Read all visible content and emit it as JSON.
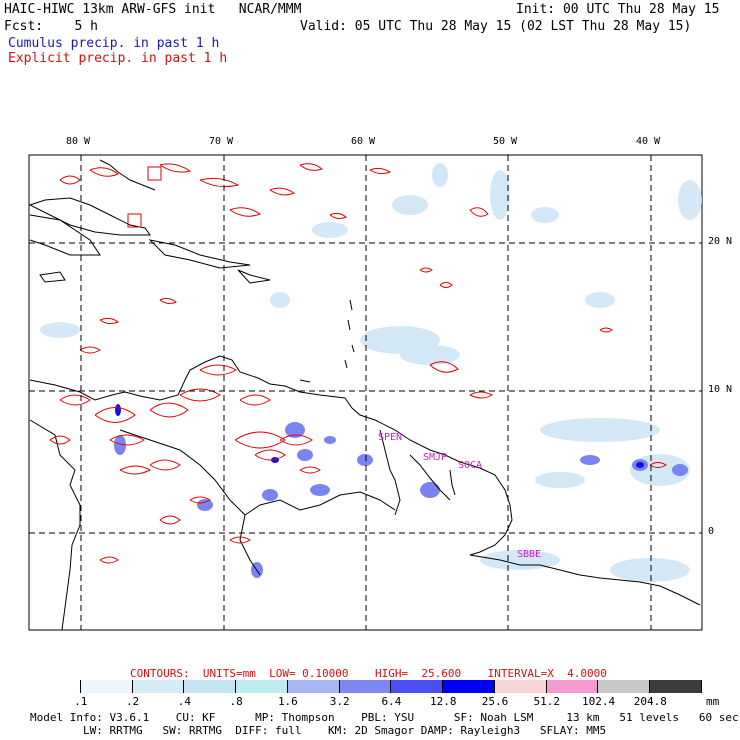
{
  "header": {
    "line1_left": "HAIC-HIWC 13km ARW-GFS init   NCAR/MMM",
    "line1_right": "Init: 00 UTC Thu 28 May 15",
    "line2_left": "Fcst:    5 h",
    "line2_right": "Valid: 05 UTC Thu 28 May 15 (02 LST Thu 28 May 15)",
    "legend_cumulus": "Cumulus precip. in past 1 h",
    "legend_explicit": "Explicit precip. in past 1 h"
  },
  "map": {
    "lon_labels": [
      "80 W",
      "70 W",
      "60 W",
      "50 W",
      "40 W"
    ],
    "lat_labels": [
      "20 N",
      "10 N",
      "0"
    ],
    "stations": [
      "SPEN",
      "SMJP",
      "SOCA",
      "SBBE"
    ],
    "colors": {
      "explicit": "#e00000",
      "coast": "#000000",
      "station": "#d020d0"
    }
  },
  "contours": {
    "label": "CONTOURS:  UNITS=mm  LOW= 0.10000    HIGH=  25.600    INTERVAL=X  4.0000"
  },
  "scale": {
    "values": [
      ".1",
      ".2",
      ".4",
      ".8",
      "1.6",
      "3.2",
      "6.4",
      "12.8",
      "25.6",
      "51.2",
      "102.4",
      "204.8"
    ],
    "unit": "mm",
    "colors": [
      "#ffffff",
      "#ecf6fb",
      "#d4ecf7",
      "#c4e4f4",
      "#bcecf0",
      "#a6b8f0",
      "#7e86f4",
      "#4a4ff4",
      "#0000f4",
      "#f8d4d8",
      "#f49ad0",
      "#c8c8c8",
      "#3c3c3c",
      "#d8aaf4"
    ]
  },
  "footer": {
    "line1": "Model Info: V3.6.1    CU: KF      MP: Thompson    PBL: YSU      SF: Noah LSM     13 km   51 levels   60 sec",
    "line2": "        LW: RRTMG   SW: RRTMG  DIFF: full    KM: 2D Smagor DAMP: Rayleigh3   SFLAY: MM5"
  }
}
